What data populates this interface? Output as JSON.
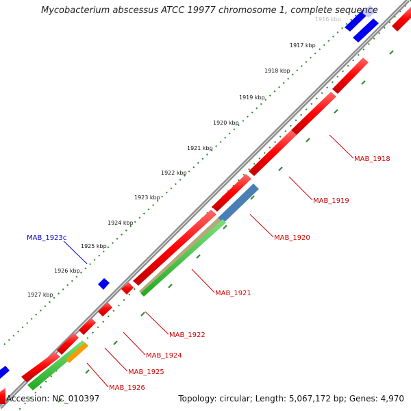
{
  "header": {
    "title": "Mycobacterium abscessus ATCC 19977 chromosome 1, complete sequence"
  },
  "footer": {
    "accession": "Accession: NC_010397",
    "stats": "Topology: circular; Length: 5,067,172 bp; Genes: 4,970"
  },
  "map": {
    "ticks": [
      {
        "label": "1916 kbp",
        "faded": true
      },
      {
        "label": "1917 kbp"
      },
      {
        "label": "1918 kbp"
      },
      {
        "label": "1919 kbp"
      },
      {
        "label": "1920 kbp"
      },
      {
        "label": "1921 kbp"
      },
      {
        "label": "1922 kbp"
      },
      {
        "label": "1923 kbp"
      },
      {
        "label": "1924 kbp"
      },
      {
        "label": "1925 kbp"
      },
      {
        "label": "1926 kbp"
      },
      {
        "label": "1927 kbp"
      }
    ],
    "gene_labels": [
      {
        "text": "MAB_1918",
        "color": "#cc0000"
      },
      {
        "text": "MAB_1919",
        "color": "#cc0000"
      },
      {
        "text": "MAB_1920",
        "color": "#cc0000"
      },
      {
        "text": "MAB_1921",
        "color": "#cc0000"
      },
      {
        "text": "MAB_1922",
        "color": "#cc0000"
      },
      {
        "text": "MAB_1924",
        "color": "#cc0000"
      },
      {
        "text": "MAB_1925",
        "color": "#cc0000"
      },
      {
        "text": "MAB_1926",
        "color": "#cc0000"
      },
      {
        "text": "MAB_1923c",
        "color": "#0000cc"
      }
    ],
    "colors": {
      "backbone": "#8c8c8c",
      "forward_cds": "#ff0000",
      "reverse_cds": "#0000ee",
      "gene_track": "#33cc33",
      "tick_dots": "#2e8b2e",
      "misc_feature": "#4a7fb5",
      "misc_feature_2": "#b5a97a",
      "orange_feature": "#ff9900"
    }
  }
}
